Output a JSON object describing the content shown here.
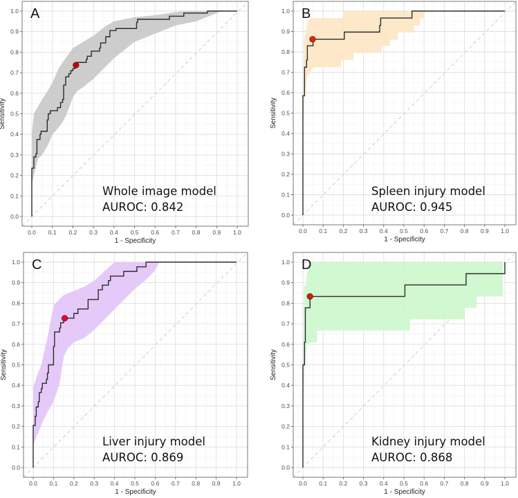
{
  "chart_data": [
    {
      "type": "line",
      "panel_label": "A",
      "title": "Whole image model",
      "metric_text": "AUROC: 0.842",
      "xlabel": "1 - Specificity",
      "ylabel": "Sensitivity",
      "xlim": [
        0,
        1
      ],
      "ylim": [
        0,
        1
      ],
      "xticks": [
        "0.0",
        "0.1",
        "0.2",
        "0.3",
        "0.4",
        "0.5",
        "0.6",
        "0.7",
        "0.8",
        "0.9",
        "1.0"
      ],
      "yticks": [
        "0.0",
        "0.1",
        "0.2",
        "0.3",
        "0.4",
        "0.5",
        "0.6",
        "0.7",
        "0.8",
        "0.9",
        "1.0"
      ],
      "grid": true,
      "band_color": "#c8c8c8",
      "point_color": "#cc0000",
      "roc_steps": [
        [
          0,
          0
        ],
        [
          0,
          0.235
        ],
        [
          0.01,
          0.29
        ],
        [
          0.02,
          0.305
        ],
        [
          0.025,
          0.375
        ],
        [
          0.04,
          0.4
        ],
        [
          0.045,
          0.415
        ],
        [
          0.075,
          0.47
        ],
        [
          0.08,
          0.5
        ],
        [
          0.09,
          0.515
        ],
        [
          0.125,
          0.53
        ],
        [
          0.14,
          0.555
        ],
        [
          0.15,
          0.57
        ],
        [
          0.155,
          0.64
        ],
        [
          0.165,
          0.68
        ],
        [
          0.18,
          0.695
        ],
        [
          0.19,
          0.71
        ],
        [
          0.2,
          0.72
        ],
        [
          0.21,
          0.735
        ],
        [
          0.22,
          0.75
        ],
        [
          0.265,
          0.765
        ],
        [
          0.27,
          0.78
        ],
        [
          0.29,
          0.805
        ],
        [
          0.33,
          0.82
        ],
        [
          0.335,
          0.845
        ],
        [
          0.36,
          0.875
        ],
        [
          0.38,
          0.905
        ],
        [
          0.41,
          0.915
        ],
        [
          0.51,
          0.945
        ],
        [
          0.515,
          0.96
        ],
        [
          0.67,
          0.975
        ],
        [
          0.74,
          0.99
        ],
        [
          0.855,
          1
        ],
        [
          1,
          1
        ]
      ],
      "ci_upper": [
        [
          0,
          0.4
        ],
        [
          0.01,
          0.5
        ],
        [
          0.05,
          0.57
        ],
        [
          0.07,
          0.6
        ],
        [
          0.1,
          0.65
        ],
        [
          0.13,
          0.72
        ],
        [
          0.15,
          0.75
        ],
        [
          0.2,
          0.82
        ],
        [
          0.25,
          0.85
        ],
        [
          0.3,
          0.88
        ],
        [
          0.35,
          0.92
        ],
        [
          0.4,
          0.95
        ],
        [
          0.5,
          0.97
        ],
        [
          0.6,
          0.98
        ],
        [
          0.7,
          0.995
        ],
        [
          0.75,
          1
        ],
        [
          0.92,
          1
        ]
      ],
      "ci_lower": [
        [
          0,
          0.16
        ],
        [
          0.03,
          0.28
        ],
        [
          0.05,
          0.3
        ],
        [
          0.08,
          0.35
        ],
        [
          0.1,
          0.4
        ],
        [
          0.12,
          0.42
        ],
        [
          0.15,
          0.46
        ],
        [
          0.17,
          0.5
        ],
        [
          0.2,
          0.58
        ],
        [
          0.22,
          0.61
        ],
        [
          0.25,
          0.63
        ],
        [
          0.3,
          0.67
        ],
        [
          0.35,
          0.72
        ],
        [
          0.4,
          0.77
        ],
        [
          0.45,
          0.81
        ],
        [
          0.5,
          0.85
        ],
        [
          0.6,
          0.89
        ],
        [
          0.7,
          0.93
        ],
        [
          0.8,
          0.95
        ],
        [
          0.85,
          0.97
        ],
        [
          0.9,
          0.99
        ],
        [
          0.92,
          1
        ]
      ],
      "optimal_point": [
        0.215,
        0.737
      ]
    },
    {
      "type": "line",
      "panel_label": "B",
      "title": "Spleen injury model",
      "metric_text": "AUROC: 0.945",
      "xlabel": "1 - Specificity",
      "ylabel": "Sensitivity",
      "xlim": [
        0,
        1
      ],
      "ylim": [
        0,
        1
      ],
      "xticks": [
        "0.0",
        "0.1",
        "0.2",
        "0.3",
        "0.4",
        "0.5",
        "0.6",
        "0.7",
        "0.8",
        "0.9",
        "1.0"
      ],
      "yticks": [
        "0.0",
        "0.1",
        "0.2",
        "0.3",
        "0.4",
        "0.5",
        "0.6",
        "0.7",
        "0.8",
        "0.9",
        "1.0"
      ],
      "grid": true,
      "band_color": "#fde6c3",
      "point_color": "#ee2200",
      "roc_steps": [
        [
          0,
          0
        ],
        [
          0,
          0.585
        ],
        [
          0.008,
          0.725
        ],
        [
          0.018,
          0.76
        ],
        [
          0.022,
          0.83
        ],
        [
          0.05,
          0.862
        ],
        [
          0.205,
          0.897
        ],
        [
          0.38,
          0.93
        ],
        [
          0.385,
          0.966
        ],
        [
          0.54,
          1
        ],
        [
          1,
          1
        ]
      ],
      "ci_upper": [
        [
          0,
          0.45
        ],
        [
          0.005,
          0.85
        ],
        [
          0.02,
          0.93
        ],
        [
          0.03,
          0.965
        ],
        [
          0.2,
          0.965
        ],
        [
          0.2,
          1
        ],
        [
          0.62,
          1
        ]
      ],
      "ci_lower": [
        [
          0,
          0.43
        ],
        [
          0.01,
          0.58
        ],
        [
          0.02,
          0.67
        ],
        [
          0.03,
          0.69
        ],
        [
          0.05,
          0.725
        ],
        [
          0.19,
          0.725
        ],
        [
          0.19,
          0.76
        ],
        [
          0.25,
          0.76
        ],
        [
          0.25,
          0.795
        ],
        [
          0.39,
          0.795
        ],
        [
          0.39,
          0.83
        ],
        [
          0.43,
          0.83
        ],
        [
          0.43,
          0.86
        ],
        [
          0.47,
          0.86
        ],
        [
          0.47,
          0.895
        ],
        [
          0.55,
          0.895
        ],
        [
          0.55,
          0.93
        ],
        [
          0.58,
          0.93
        ],
        [
          0.58,
          0.965
        ],
        [
          0.6,
          0.965
        ],
        [
          0.6,
          0.99
        ],
        [
          0.62,
          1
        ]
      ],
      "optimal_point": [
        0.048,
        0.862
      ]
    },
    {
      "type": "line",
      "panel_label": "C",
      "title": "Liver injury model",
      "metric_text": "AUROC: 0.869",
      "xlabel": "1 - Specificity",
      "ylabel": "Sensitivity",
      "xlim": [
        0,
        1
      ],
      "ylim": [
        0,
        1
      ],
      "xticks": [
        "0.0",
        "0.1",
        "0.2",
        "0.3",
        "0.4",
        "0.5",
        "0.6",
        "0.7",
        "0.8",
        "0.9",
        "1.0"
      ],
      "yticks": [
        "0.0",
        "0.1",
        "0.2",
        "0.3",
        "0.4",
        "0.5",
        "0.6",
        "0.7",
        "0.8",
        "0.9",
        "1.0"
      ],
      "grid": true,
      "band_color": "#e2c4f8",
      "point_color": "#ee0033",
      "roc_steps": [
        [
          0,
          0
        ],
        [
          0,
          0.205
        ],
        [
          0.01,
          0.25
        ],
        [
          0.015,
          0.295
        ],
        [
          0.025,
          0.32
        ],
        [
          0.03,
          0.365
        ],
        [
          0.04,
          0.385
        ],
        [
          0.045,
          0.41
        ],
        [
          0.065,
          0.43
        ],
        [
          0.07,
          0.46
        ],
        [
          0.075,
          0.5
        ],
        [
          0.1,
          0.59
        ],
        [
          0.105,
          0.66
        ],
        [
          0.13,
          0.68
        ],
        [
          0.135,
          0.705
        ],
        [
          0.15,
          0.727
        ],
        [
          0.2,
          0.75
        ],
        [
          0.22,
          0.772
        ],
        [
          0.27,
          0.818
        ],
        [
          0.32,
          0.865
        ],
        [
          0.34,
          0.888
        ],
        [
          0.37,
          0.91
        ],
        [
          0.38,
          0.932
        ],
        [
          0.445,
          0.955
        ],
        [
          0.51,
          0.977
        ],
        [
          0.555,
          1
        ],
        [
          1,
          1
        ]
      ],
      "ci_upper": [
        [
          0,
          0.39
        ],
        [
          0.02,
          0.45
        ],
        [
          0.04,
          0.5
        ],
        [
          0.06,
          0.59
        ],
        [
          0.08,
          0.68
        ],
        [
          0.1,
          0.79
        ],
        [
          0.15,
          0.84
        ],
        [
          0.2,
          0.86
        ],
        [
          0.25,
          0.88
        ],
        [
          0.3,
          0.91
        ],
        [
          0.35,
          0.955
        ],
        [
          0.4,
          1
        ],
        [
          0.62,
          1
        ]
      ],
      "ci_lower": [
        [
          0,
          0.11
        ],
        [
          0.02,
          0.16
        ],
        [
          0.05,
          0.23
        ],
        [
          0.07,
          0.27
        ],
        [
          0.1,
          0.32
        ],
        [
          0.13,
          0.41
        ],
        [
          0.15,
          0.54
        ],
        [
          0.17,
          0.58
        ],
        [
          0.2,
          0.61
        ],
        [
          0.25,
          0.63
        ],
        [
          0.3,
          0.67
        ],
        [
          0.35,
          0.72
        ],
        [
          0.4,
          0.77
        ],
        [
          0.45,
          0.82
        ],
        [
          0.5,
          0.87
        ],
        [
          0.55,
          0.91
        ],
        [
          0.6,
          0.96
        ],
        [
          0.62,
          1
        ]
      ],
      "optimal_point": [
        0.155,
        0.727
      ]
    },
    {
      "type": "line",
      "panel_label": "D",
      "title": "Kidney injury model",
      "metric_text": "AUROC: 0.868",
      "xlabel": "1 - Specificity",
      "ylabel": "Sensitivity",
      "xlim": [
        0,
        1
      ],
      "ylim": [
        0,
        1
      ],
      "xticks": [
        "0.0",
        "0.1",
        "0.2",
        "0.3",
        "0.4",
        "0.5",
        "0.6",
        "0.7",
        "0.8",
        "0.9",
        "1.0"
      ],
      "yticks": [
        "0.0",
        "0.1",
        "0.2",
        "0.3",
        "0.4",
        "0.5",
        "0.6",
        "0.7",
        "0.8",
        "0.9",
        "1.0"
      ],
      "grid": true,
      "band_color": "#ccf7cc",
      "point_color": "#cc2200",
      "roc_steps": [
        [
          0,
          0
        ],
        [
          0,
          0.5
        ],
        [
          0.008,
          0.61
        ],
        [
          0.012,
          0.778
        ],
        [
          0.035,
          0.833
        ],
        [
          0.505,
          0.889
        ],
        [
          0.808,
          0.944
        ],
        [
          1,
          1
        ]
      ],
      "ci_upper": [
        [
          0,
          0.3
        ],
        [
          0.005,
          0.88
        ],
        [
          0.015,
          0.89
        ],
        [
          0.02,
          0.94
        ],
        [
          0.03,
          1
        ],
        [
          1,
          1
        ]
      ],
      "ci_lower": [
        [
          0,
          0.28
        ],
        [
          0.01,
          0.5
        ],
        [
          0.02,
          0.6
        ],
        [
          0.045,
          0.61
        ],
        [
          0.07,
          0.61
        ],
        [
          0.07,
          0.667
        ],
        [
          0.53,
          0.667
        ],
        [
          0.53,
          0.722
        ],
        [
          0.8,
          0.722
        ],
        [
          0.8,
          0.778
        ],
        [
          0.86,
          0.778
        ],
        [
          0.86,
          0.833
        ],
        [
          0.99,
          0.833
        ],
        [
          0.99,
          1
        ]
      ],
      "optimal_point": [
        0.035,
        0.833
      ]
    }
  ]
}
